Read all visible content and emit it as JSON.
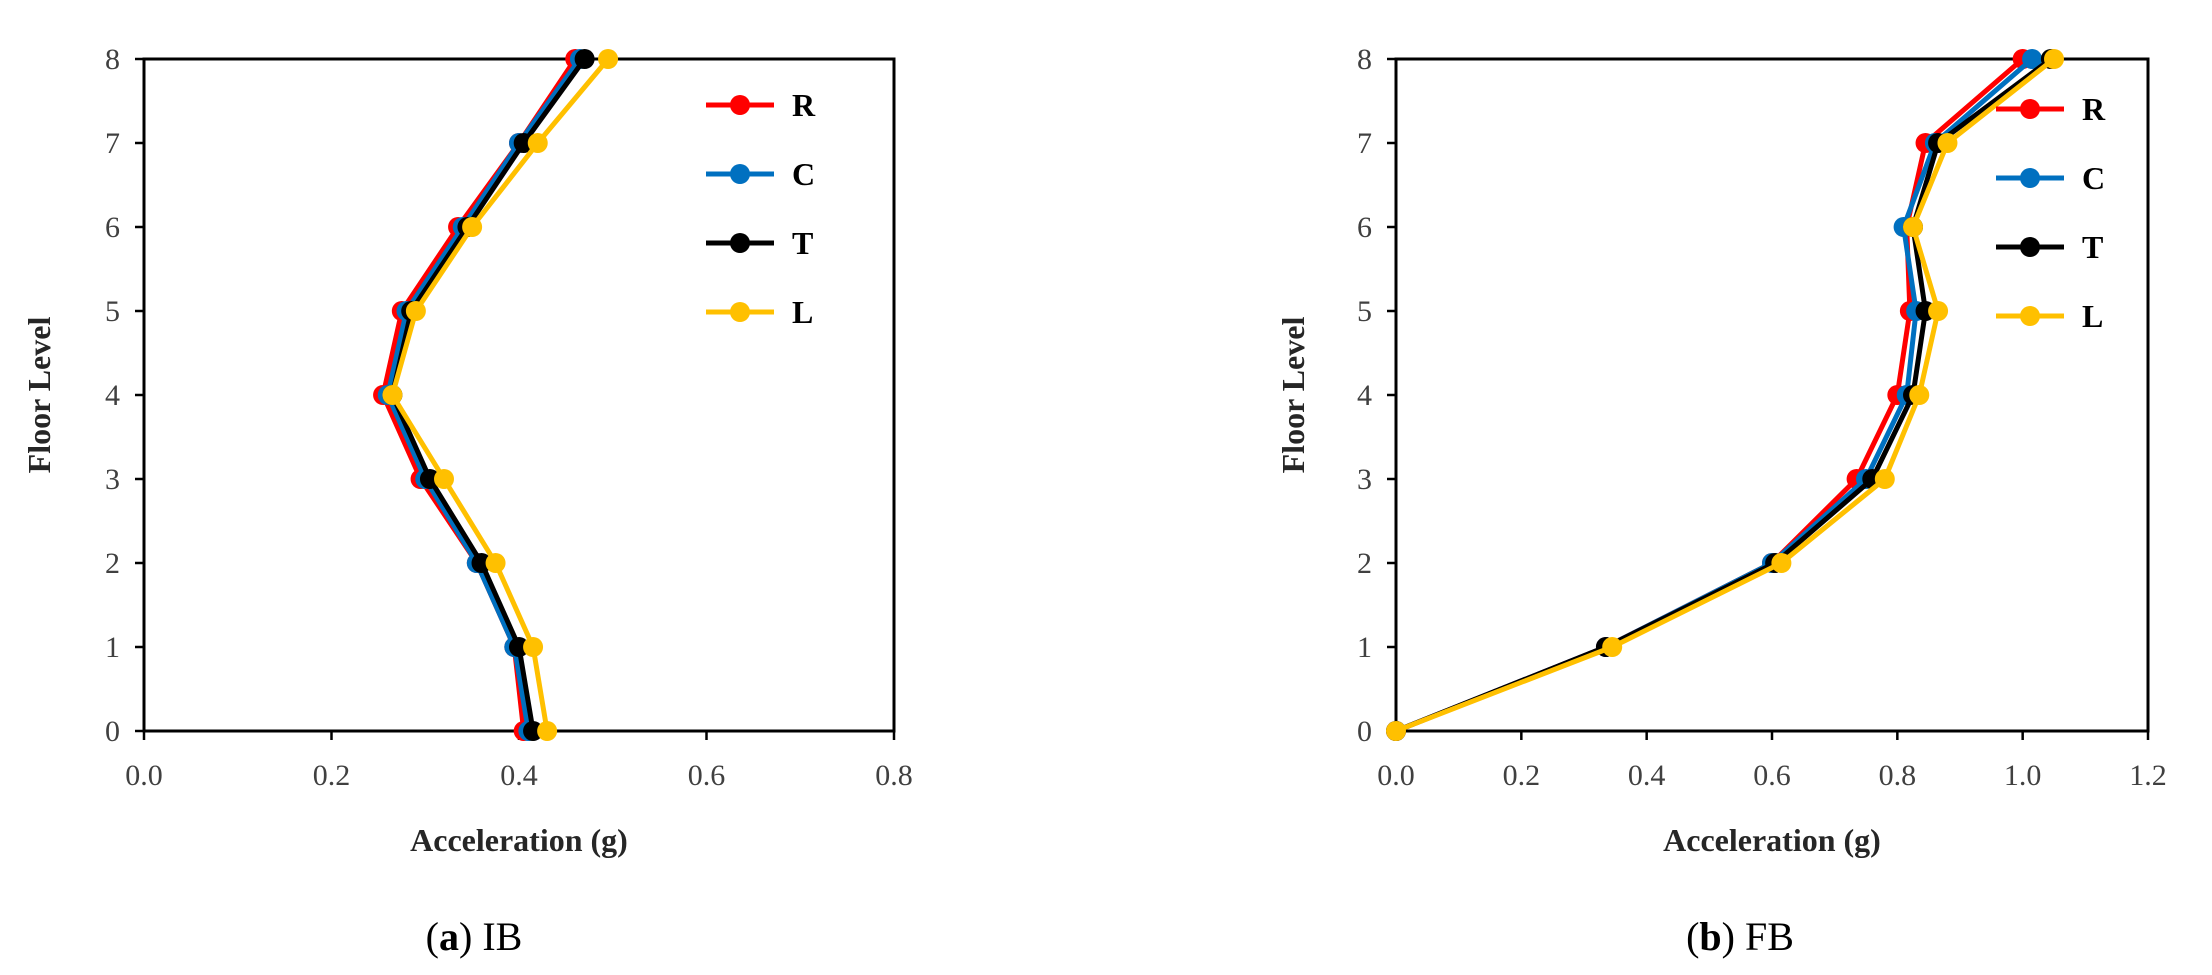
{
  "chart_data": [
    {
      "type": "line",
      "caption": {
        "open": "(",
        "letter": "a",
        "close": ")",
        "text": " IB"
      },
      "xlabel": "Acceleration (g)",
      "ylabel": "Floor Level",
      "xlim": [
        0,
        0.8
      ],
      "ylim": [
        0,
        8
      ],
      "xticks": [
        "0.0",
        "0.2",
        "0.4",
        "0.6",
        "0.8"
      ],
      "yticks": [
        "0",
        "1",
        "2",
        "3",
        "4",
        "5",
        "6",
        "7",
        "8"
      ],
      "grid": false,
      "legend": "top-right",
      "y": [
        0,
        1,
        2,
        3,
        4,
        5,
        6,
        7,
        8
      ],
      "series": [
        {
          "name": "R",
          "color": "#ff0000",
          "values": [
            0.405,
            0.395,
            0.355,
            0.295,
            0.255,
            0.275,
            0.335,
            0.4,
            0.46
          ]
        },
        {
          "name": "C",
          "color": "#0070c0",
          "values": [
            0.41,
            0.395,
            0.355,
            0.3,
            0.26,
            0.28,
            0.34,
            0.4,
            0.465
          ]
        },
        {
          "name": "T",
          "color": "#000000",
          "values": [
            0.415,
            0.4,
            0.36,
            0.305,
            0.265,
            0.285,
            0.345,
            0.405,
            0.47
          ]
        },
        {
          "name": "L",
          "color": "#ffc000",
          "values": [
            0.43,
            0.415,
            0.375,
            0.32,
            0.265,
            0.29,
            0.35,
            0.42,
            0.495
          ]
        }
      ]
    },
    {
      "type": "line",
      "caption": {
        "open": "(",
        "letter": "b",
        "close": ")",
        "text": " FB"
      },
      "xlabel": "Acceleration (g)",
      "ylabel": "Floor Level",
      "xlim": [
        0,
        1.2
      ],
      "ylim": [
        0,
        8
      ],
      "xticks": [
        "0.0",
        "0.2",
        "0.4",
        "0.6",
        "0.8",
        "1.0",
        "1.2"
      ],
      "yticks": [
        "0",
        "1",
        "2",
        "3",
        "4",
        "5",
        "6",
        "7",
        "8"
      ],
      "grid": false,
      "legend": "top-right",
      "y": [
        0,
        1,
        2,
        3,
        4,
        5,
        6,
        7,
        8
      ],
      "series": [
        {
          "name": "R",
          "color": "#ff0000",
          "values": [
            0,
            0.335,
            0.6,
            0.735,
            0.8,
            0.82,
            0.815,
            0.845,
            1.0
          ]
        },
        {
          "name": "C",
          "color": "#0070c0",
          "values": [
            0,
            0.335,
            0.6,
            0.75,
            0.815,
            0.83,
            0.81,
            0.86,
            1.015
          ]
        },
        {
          "name": "T",
          "color": "#000000",
          "values": [
            0,
            0.335,
            0.605,
            0.76,
            0.825,
            0.845,
            0.825,
            0.865,
            1.045
          ]
        },
        {
          "name": "L",
          "color": "#ffc000",
          "values": [
            0,
            0.345,
            0.615,
            0.78,
            0.835,
            0.865,
            0.825,
            0.88,
            1.05
          ]
        }
      ]
    }
  ]
}
